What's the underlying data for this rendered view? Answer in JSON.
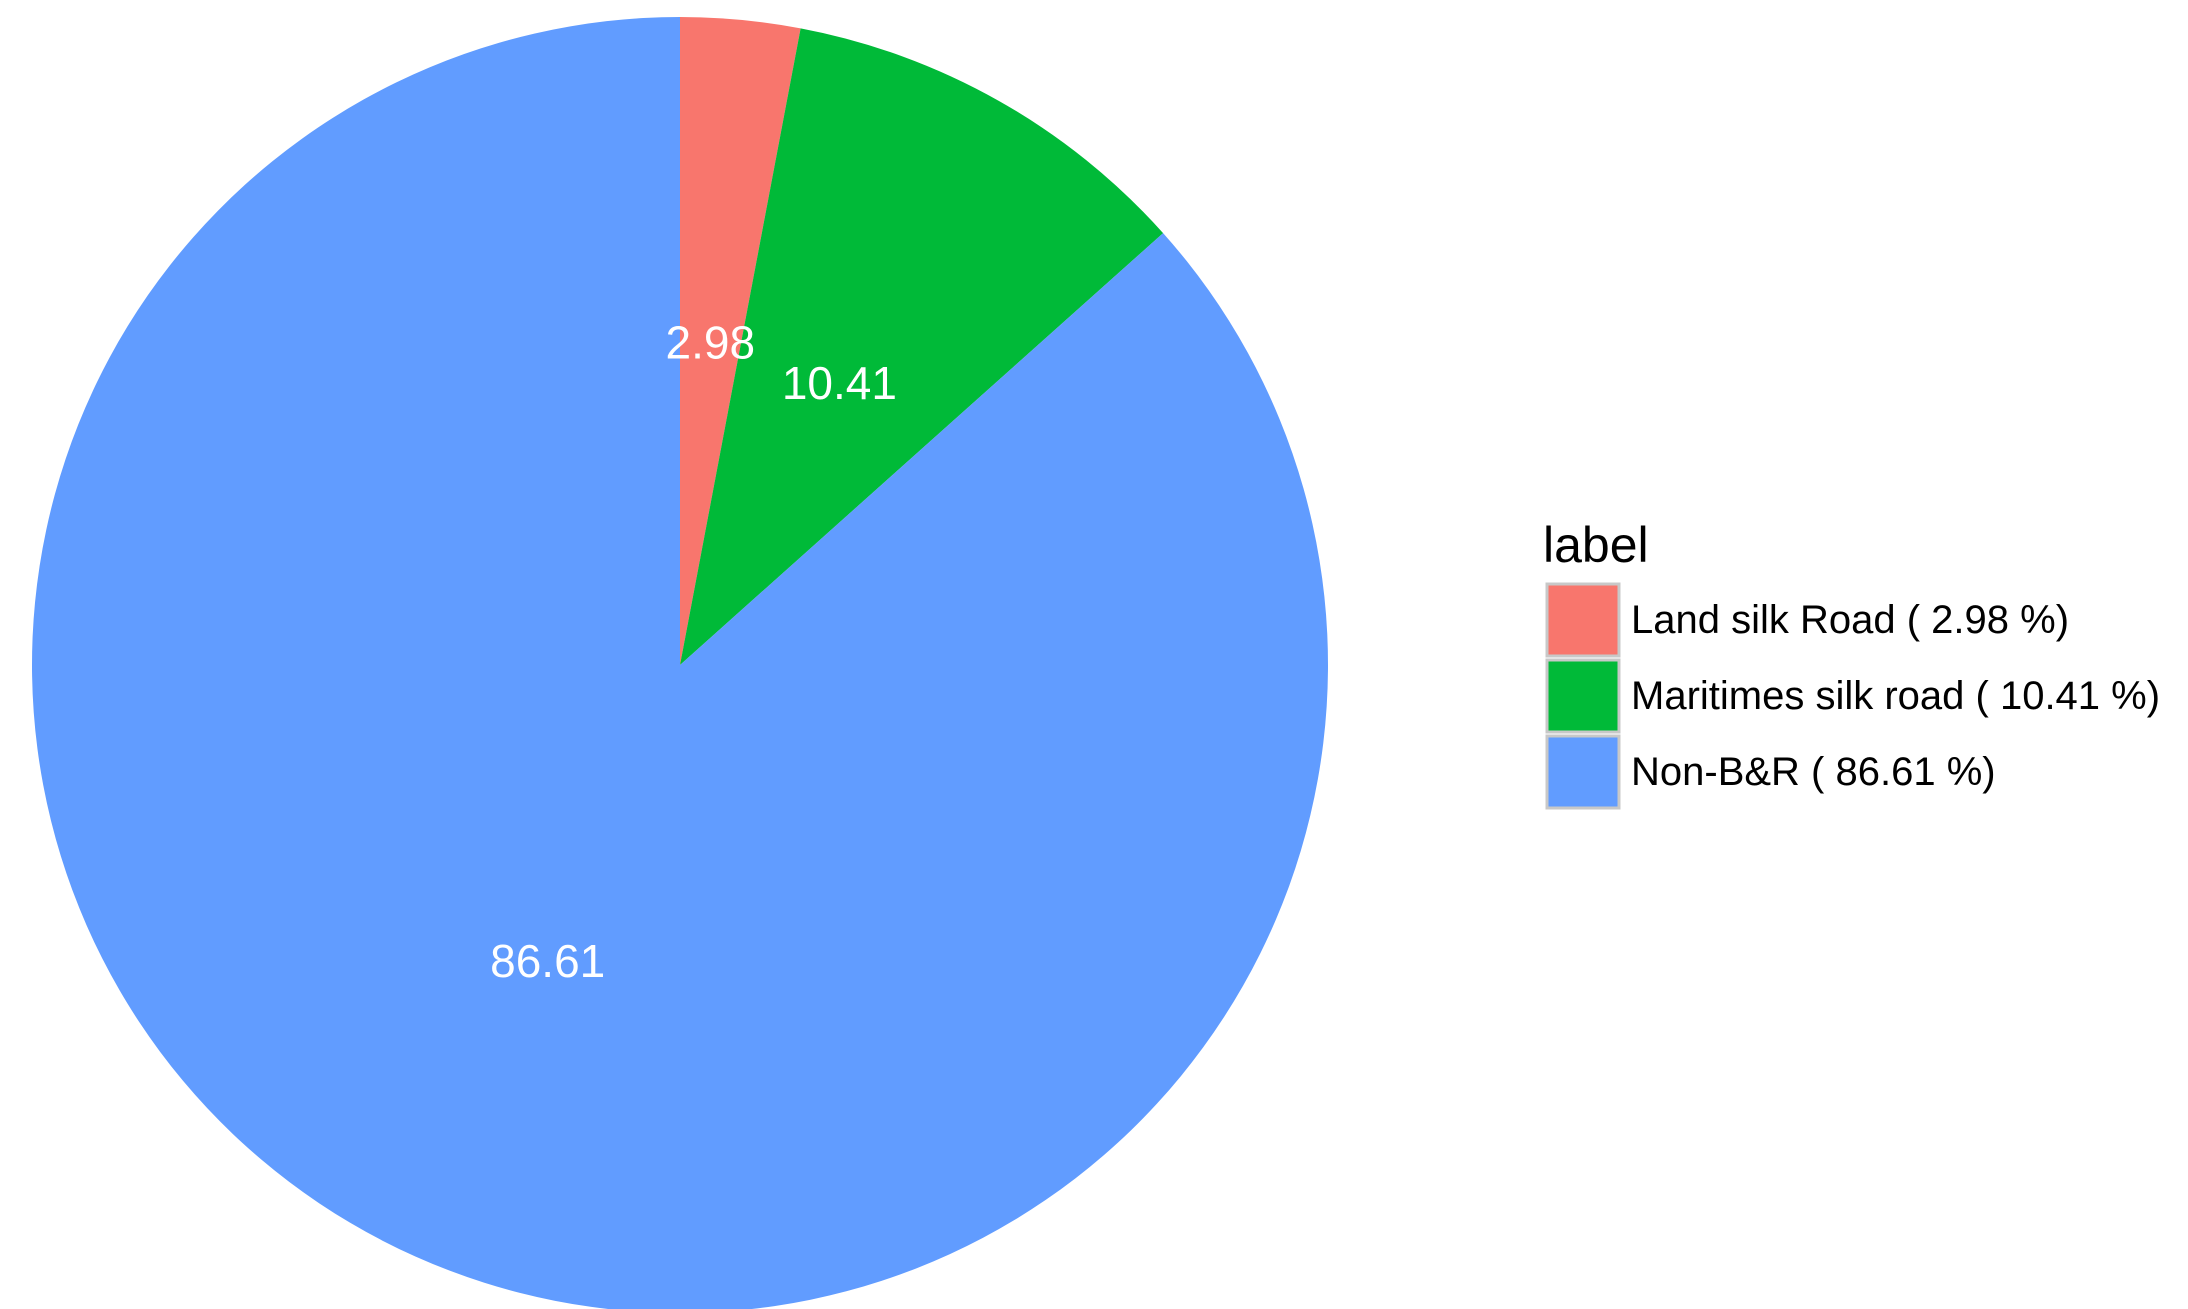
{
  "chart_data": {
    "type": "pie",
    "title": "",
    "start_angle_deg": 0,
    "direction": "clockwise",
    "legend": {
      "title": "label",
      "placement": "right"
    },
    "slices": [
      {
        "name": "Land silk Road ( 2.98 %)",
        "value": 2.98,
        "label": "2.98",
        "color": "#F8766D"
      },
      {
        "name": "Maritimes silk road ( 10.41 %)",
        "value": 10.41,
        "label": "10.41",
        "color": "#00BA38"
      },
      {
        "name": "Non-B&R ( 86.61 %)",
        "value": 86.61,
        "label": "86.61",
        "color": "#619CFF"
      }
    ]
  }
}
